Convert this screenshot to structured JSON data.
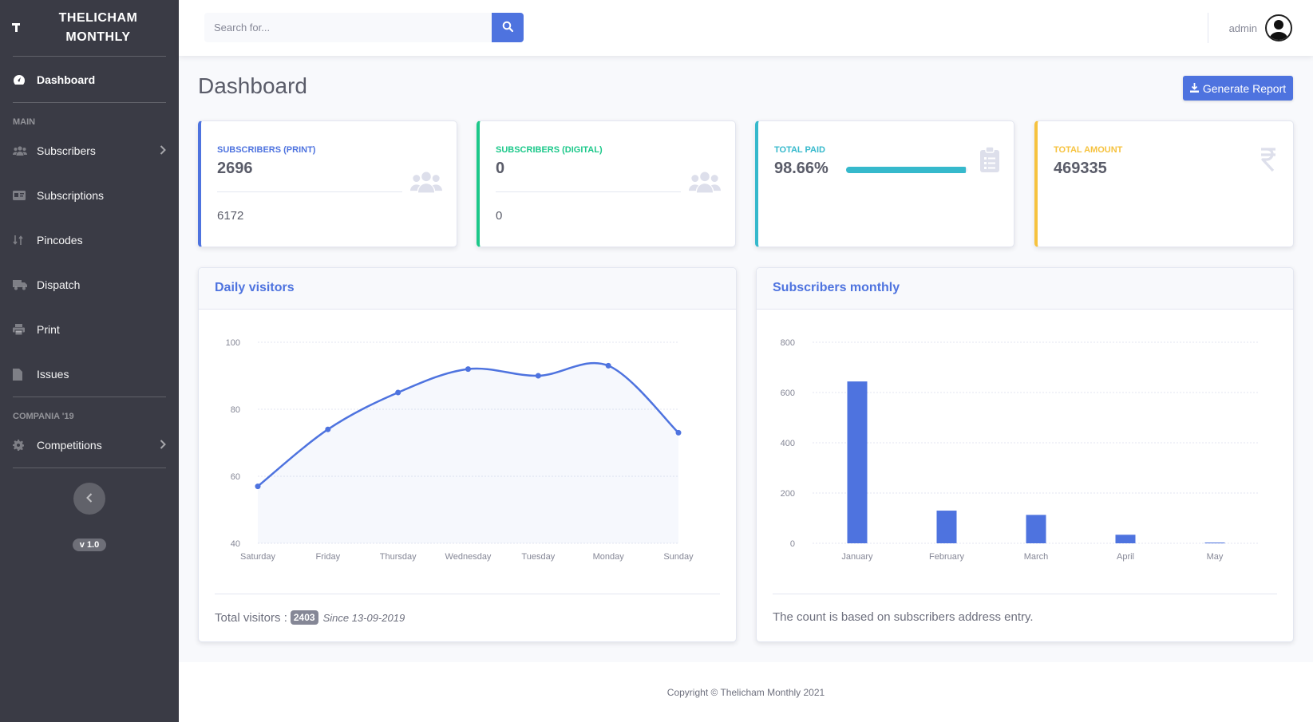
{
  "brand": {
    "icon": "brand-t-icon",
    "name": "THELICHAM MONTHLY"
  },
  "sidebar": {
    "dashboard": "Dashboard",
    "heading_main": "MAIN",
    "items": [
      {
        "label": "Subscribers",
        "icon": "users-icon",
        "arrow": true
      },
      {
        "label": "Subscriptions",
        "icon": "id-card-icon",
        "arrow": false
      },
      {
        "label": "Pincodes",
        "icon": "sort-icon",
        "arrow": false
      },
      {
        "label": "Dispatch",
        "icon": "truck-icon",
        "arrow": false
      },
      {
        "label": "Print",
        "icon": "print-icon",
        "arrow": false
      },
      {
        "label": "Issues",
        "icon": "file-icon",
        "arrow": false
      }
    ],
    "heading_compania": "COMPANIA '19",
    "competitions": "Competitions",
    "version": "v 1.0"
  },
  "topbar": {
    "search_placeholder": "Search for...",
    "user": "admin"
  },
  "page": {
    "title": "Dashboard",
    "generate_report": "Generate Report"
  },
  "stats": {
    "print": {
      "label": "SUBSCRIBERS (PRINT)",
      "value": "2696",
      "sub": "6172",
      "color": "#4e73df"
    },
    "digital": {
      "label": "SUBSCRIBERS (DIGITAL)",
      "value": "0",
      "sub": "0",
      "color": "#1cc88a"
    },
    "paid": {
      "label": "TOTAL PAID",
      "value": "98.66%",
      "progress": 98.66,
      "color": "#36b9cc"
    },
    "amount": {
      "label": "TOTAL AMOUNT",
      "value": "469335",
      "color": "#f6c23e"
    }
  },
  "panels": {
    "visitors": {
      "title": "Daily visitors",
      "foot_label": "Total visitors :",
      "badge": "2403",
      "since": "Since 13-09-2019"
    },
    "monthly": {
      "title": "Subscribers monthly",
      "foot": "The count is based on subscribers address entry."
    }
  },
  "footer": "Copyright © Thelicham Monthly 2021",
  "chart_data": [
    {
      "type": "area",
      "x": [
        "Saturday",
        "Friday",
        "Thursday",
        "Wednesday",
        "Tuesday",
        "Monday",
        "Sunday"
      ],
      "series": [
        {
          "values": [
            57,
            74,
            85,
            92,
            90,
            93,
            73
          ]
        }
      ],
      "ylim": [
        40,
        100
      ],
      "yticks": [
        40,
        60,
        80,
        100
      ],
      "color": "#4e73df",
      "grid": true
    },
    {
      "type": "bar",
      "categories": [
        "January",
        "February",
        "March",
        "April",
        "May"
      ],
      "series": [
        {
          "values": [
            644,
            130,
            113,
            34,
            3
          ]
        }
      ],
      "ylim": [
        0,
        800
      ],
      "yticks": [
        0,
        200,
        400,
        600,
        800
      ],
      "color": "#4e73df",
      "grid": true
    }
  ]
}
